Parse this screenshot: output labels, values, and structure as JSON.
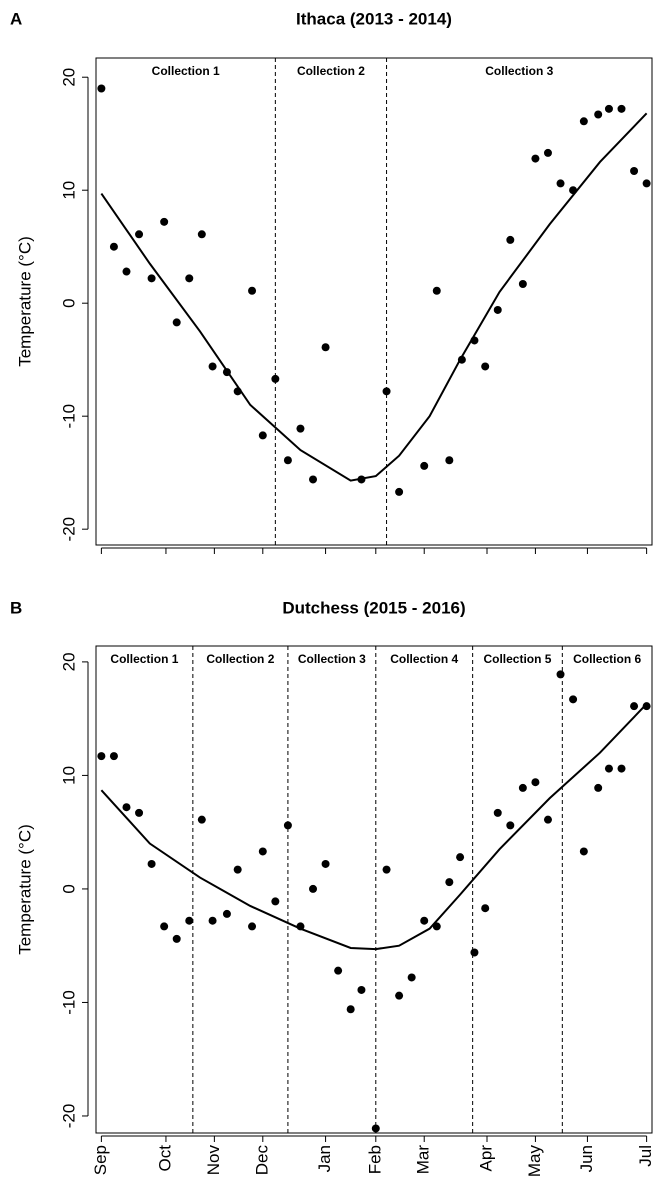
{
  "chart_data": [
    {
      "type": "scatter",
      "panel_label": "A",
      "title": "Ithaca (2013 - 2014)",
      "y_label": "Temperature (°C)",
      "collections": [
        "Collection 1",
        "Collection 2",
        "Collection 3"
      ],
      "collection_boundaries": [
        97,
        159
      ],
      "x": [
        0,
        7,
        14,
        21,
        28,
        35,
        42,
        49,
        56,
        62,
        70,
        76,
        84,
        90,
        97,
        104,
        111,
        118,
        125,
        145,
        159,
        166,
        180,
        187,
        194,
        201,
        208,
        214,
        221,
        228,
        235,
        242,
        249,
        256,
        263,
        269,
        277,
        283,
        290,
        297,
        304
      ],
      "values": [
        19,
        5,
        2.8,
        6.1,
        2.2,
        7.2,
        -1.7,
        2.2,
        6.1,
        -5.6,
        -6.1,
        -7.8,
        1.1,
        -11.7,
        -6.7,
        -13.9,
        -11.1,
        -15.6,
        -3.9,
        -15.6,
        -7.8,
        -16.7,
        -14.4,
        1.1,
        -13.9,
        -5,
        -3.3,
        -5.6,
        -0.6,
        5.6,
        1.7,
        12.8,
        13.3,
        10.6,
        10,
        16.1,
        16.7,
        17.2,
        17.2,
        11.7,
        10.6
      ],
      "fit_x": [
        0,
        27,
        55,
        83,
        111,
        139,
        153,
        166,
        183,
        200,
        222,
        250,
        278,
        304
      ],
      "fit_values": [
        9.7,
        3.5,
        -2.5,
        -9,
        -13,
        -15.7,
        -15.3,
        -13.5,
        -10,
        -5,
        1,
        7,
        12.5,
        16.8
      ],
      "xlim": [
        -3,
        307
      ],
      "ylim": [
        -21.4,
        21.7
      ],
      "yticks": [
        -20,
        -10,
        0,
        10,
        20
      ],
      "point_color": "#000000",
      "line_color": "#000000"
    },
    {
      "type": "scatter",
      "panel_label": "B",
      "title": "Dutchess (2015 - 2016)",
      "y_label": "Temperature (°C)",
      "collections": [
        "Collection 1",
        "Collection 2",
        "Collection 3",
        "Collection 4",
        "Collection 5",
        "Collection 6"
      ],
      "collection_boundaries": [
        51,
        104,
        153,
        207,
        257
      ],
      "x": [
        0,
        7,
        14,
        21,
        28,
        35,
        42,
        49,
        56,
        62,
        70,
        76,
        84,
        90,
        97,
        104,
        111,
        118,
        125,
        132,
        139,
        145,
        153,
        159,
        166,
        173,
        180,
        187,
        194,
        200,
        208,
        214,
        221,
        228,
        235,
        242,
        249,
        256,
        263,
        269,
        277,
        283,
        290,
        297,
        304
      ],
      "values": [
        11.7,
        11.7,
        7.2,
        6.7,
        2.2,
        -3.3,
        -4.4,
        -2.8,
        6.1,
        -2.8,
        -2.2,
        1.7,
        -3.3,
        3.3,
        -1.1,
        5.6,
        -3.3,
        0,
        2.2,
        -7.2,
        -10.6,
        -8.9,
        -21.1,
        1.7,
        -9.4,
        -7.8,
        -2.8,
        -3.3,
        0.6,
        2.8,
        -5.6,
        -1.7,
        6.7,
        5.6,
        8.9,
        9.4,
        6.1,
        18.9,
        16.7,
        3.3,
        8.9,
        10.6,
        10.6,
        16.1,
        16.1
      ],
      "fit_x": [
        0,
        27,
        55,
        83,
        111,
        139,
        153,
        166,
        183,
        200,
        222,
        250,
        278,
        304
      ],
      "fit_values": [
        8.7,
        4,
        1,
        -1.5,
        -3.5,
        -5.2,
        -5.3,
        -5,
        -3.5,
        -0.5,
        3.5,
        8,
        12,
        16.3
      ],
      "xlim": [
        -3,
        307
      ],
      "ylim": [
        -21.5,
        21.4
      ],
      "yticks": [
        -20,
        -10,
        0,
        10,
        20
      ],
      "xticks": [
        {
          "value": 0,
          "label": "Sep"
        },
        {
          "value": 36,
          "label": "Oct"
        },
        {
          "value": 63,
          "label": "Nov"
        },
        {
          "value": 90,
          "label": "Dec"
        },
        {
          "value": 125,
          "label": "Jan"
        },
        {
          "value": 153,
          "label": "Feb"
        },
        {
          "value": 180,
          "label": "Mar"
        },
        {
          "value": 215,
          "label": "Apr"
        },
        {
          "value": 242,
          "label": "May"
        },
        {
          "value": 271,
          "label": "Jun"
        },
        {
          "value": 304,
          "label": "Jul"
        }
      ],
      "point_color": "#000000",
      "line_color": "#000000"
    }
  ]
}
